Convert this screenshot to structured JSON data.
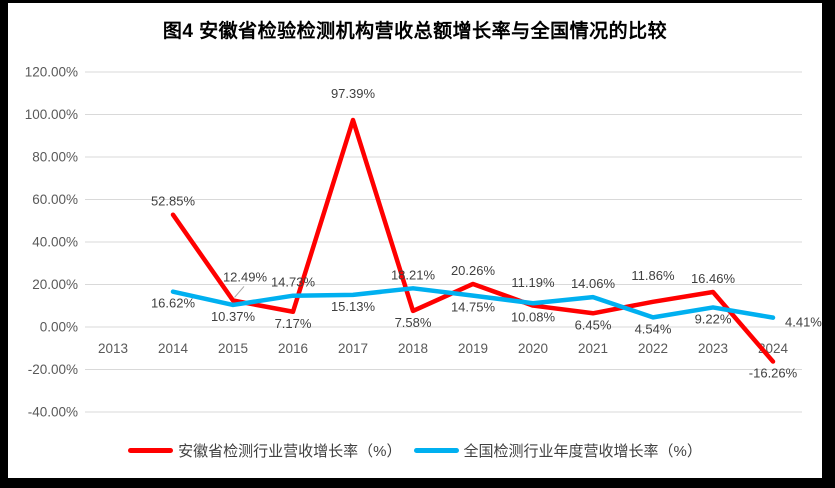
{
  "window": {
    "frame_color": "#000000",
    "background_color": "#ffffff"
  },
  "chart_data": {
    "type": "line",
    "title": "图4 安徽省检验检测机构营收总额增长率与全国情况的比较",
    "categories": [
      "2013",
      "2014",
      "2015",
      "2016",
      "2017",
      "2018",
      "2019",
      "2020",
      "2021",
      "2022",
      "2023",
      "2024"
    ],
    "series": [
      {
        "name": "安徽省检测行业营收增长率（%）",
        "color": "#FF0000",
        "values": [
          null,
          52.85,
          12.49,
          7.17,
          97.39,
          7.58,
          20.26,
          10.08,
          6.45,
          11.86,
          16.46,
          -16.26
        ]
      },
      {
        "name": "全国检测行业年度营收增长率（%）",
        "color": "#00B0F0",
        "values": [
          null,
          16.62,
          10.37,
          14.73,
          15.13,
          18.21,
          14.75,
          11.19,
          14.06,
          4.54,
          9.22,
          4.41
        ]
      }
    ],
    "y_ticks": [
      {
        "value": 120,
        "label": "120.00%"
      },
      {
        "value": 100,
        "label": "100.00%"
      },
      {
        "value": 80,
        "label": "80.00%"
      },
      {
        "value": 60,
        "label": "60.00%"
      },
      {
        "value": 40,
        "label": "40.00%"
      },
      {
        "value": 20,
        "label": "20.00%"
      },
      {
        "value": 0,
        "label": "0.00%"
      },
      {
        "value": -20,
        "label": "-20.00%"
      },
      {
        "value": -40,
        "label": "-40.00%"
      }
    ],
    "ylim": [
      -40,
      120
    ],
    "grid": true,
    "data_labels": true,
    "legend_position": "bottom",
    "gridline_color": "#D9D9D9",
    "axis_text_color": "#595959",
    "label_text_color": "#404040",
    "leader_line_color": "#A6A6A6"
  }
}
